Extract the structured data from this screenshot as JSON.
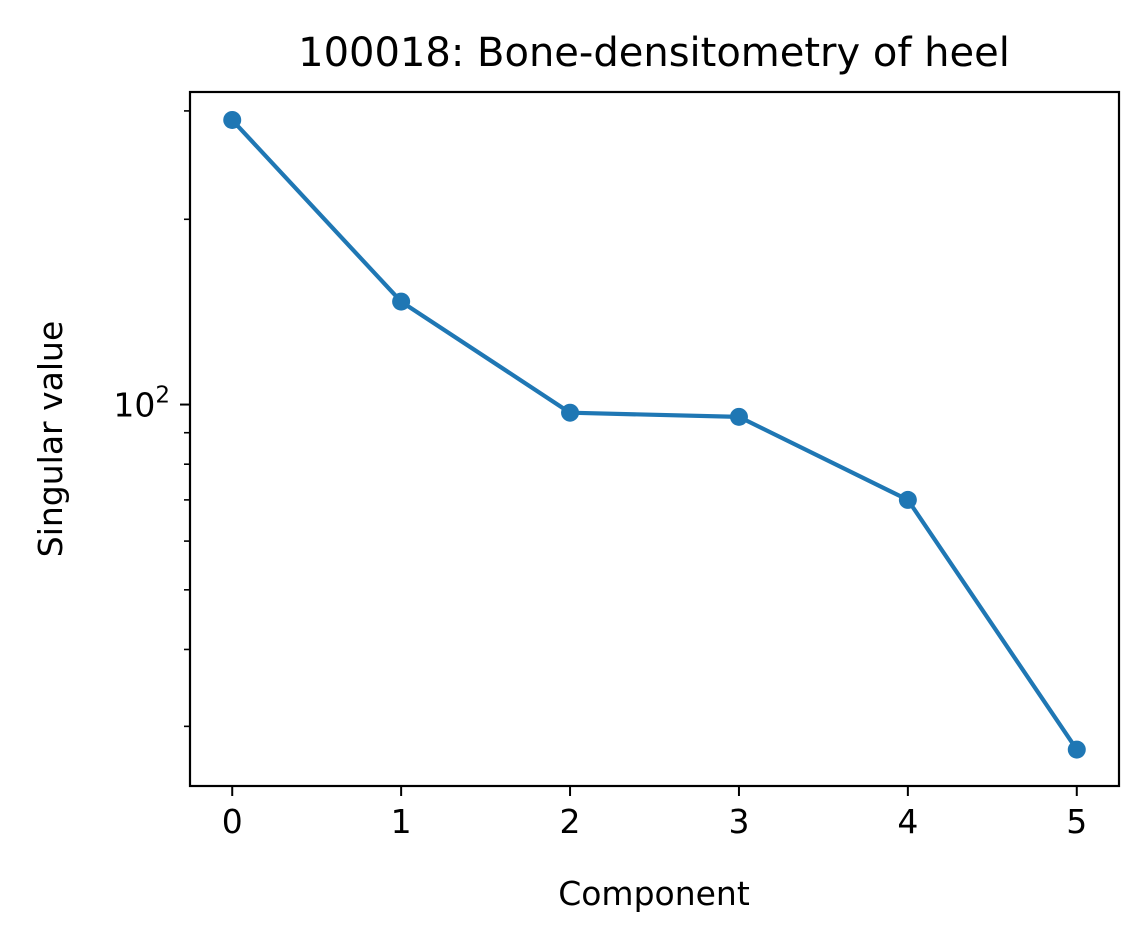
{
  "chart_data": {
    "type": "line",
    "title": "100018: Bone-densitometry of heel",
    "xlabel": "Component",
    "ylabel": "Singular value",
    "y_scale": "log",
    "x": [
      0,
      1,
      2,
      3,
      4,
      5
    ],
    "series": [
      {
        "values": [
          290,
          147,
          97,
          95.5,
          70,
          27.5
        ],
        "color": "#1f77b4",
        "marker": "circle"
      }
    ],
    "xlim": [
      -0.25,
      5.25
    ],
    "ylim": [
      24,
      322
    ],
    "x_ticks": [
      {
        "value": 0,
        "label": "0"
      },
      {
        "value": 1,
        "label": "1"
      },
      {
        "value": 2,
        "label": "2"
      },
      {
        "value": 3,
        "label": "3"
      },
      {
        "value": 4,
        "label": "4"
      },
      {
        "value": 5,
        "label": "5"
      }
    ],
    "y_major_ticks": [
      {
        "value": 100,
        "base": "10",
        "exp": "2"
      }
    ],
    "y_minor_ticks": [
      30,
      40,
      50,
      60,
      70,
      80,
      90,
      200,
      300
    ],
    "grid": false,
    "legend": "none"
  }
}
